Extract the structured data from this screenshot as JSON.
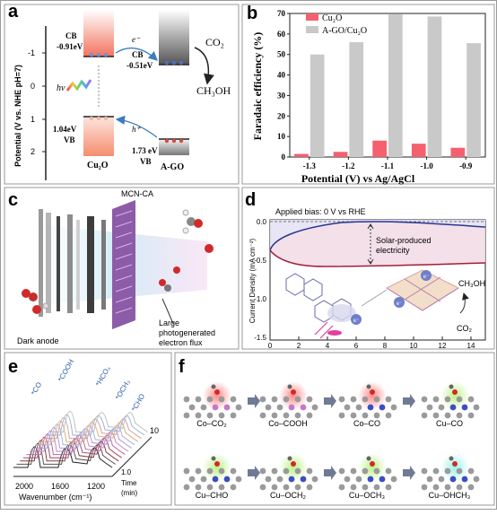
{
  "panel_a": {
    "label": "a",
    "yaxis_title": "Potential  (V vs. NHE pH=7)",
    "ticks": [
      "-1",
      "0",
      "1",
      "2"
    ],
    "cu2o": {
      "cb": "CB",
      "cb_val": "-0.91eV",
      "vb_val": "1.04eV",
      "vb": "VB",
      "name": "Cu₂O"
    },
    "ago": {
      "cb": "CB",
      "cb_val": "-0.51eV",
      "vb_val": "1.73 eV",
      "vb": "VB",
      "name": "A-GO"
    },
    "hv": "hv",
    "e_label": "e⁻",
    "h_label": "h⁺",
    "co2": "CO₂",
    "ch3oh": "CH₃OH",
    "colors": {
      "cu2o": "#f3735e",
      "ago": "#666666"
    }
  },
  "panel_b": {
    "label": "b",
    "chart_data": {
      "type": "bar",
      "categories": [
        "-1.3",
        "-1.2",
        "-1.1",
        "-1.0",
        "-0.9"
      ],
      "series": [
        {
          "name": "Cu₂O",
          "values": [
            1.5,
            2.5,
            8,
            6.5,
            4.5
          ],
          "color": "#f4606e"
        },
        {
          "name": "A-GO/Cu₂O",
          "values": [
            50,
            56,
            69.5,
            68.5,
            55.5
          ],
          "color": "#c9c9c9"
        }
      ],
      "xlabel": "Potential (V) vs Ag/AgCl",
      "ylabel": "Faradaic efficiency (%)",
      "ylim": [
        0,
        70
      ],
      "yticks": [
        "0",
        "10",
        "20",
        "30",
        "40",
        "50",
        "60",
        "70"
      ],
      "legend": "top-left"
    }
  },
  "panel_c": {
    "label": "c",
    "mcn_label": "MCN-CA",
    "dark_anode": "Dark anode",
    "flux_line1": "Large",
    "flux_line2": "photogenerated",
    "flux_line3": "electron flux"
  },
  "panel_d": {
    "label": "d",
    "bias": "Applied bias: 0 V vs RHE",
    "annotation_line1": "Solar-produced",
    "annotation_line2": "electricity",
    "ylabel": "Current Density (mA cm⁻²)",
    "yticks": [
      "0.0",
      "-0.5",
      "-1.0",
      "-1.5"
    ],
    "xticks": [
      "0",
      "2",
      "4",
      "6",
      "8",
      "10",
      "12",
      "14"
    ],
    "ch3oh": "CH₃OH",
    "co2": "CO₂",
    "electron": "e⁻"
  },
  "panel_e": {
    "label": "e",
    "peaks": [
      "*CO",
      "*COOH",
      "*HCO₃",
      "*OCH₃",
      "*CHO"
    ],
    "xticks": [
      "2000",
      "1600",
      "1200"
    ],
    "xlabel": "Wavenumber (cm⁻¹)",
    "time_ticks": [
      "10",
      "1.0"
    ],
    "time_label": "Time",
    "time_unit": "(min)"
  },
  "panel_f": {
    "label": "f",
    "row1": [
      "Co–CO₂",
      "Co–COOH",
      "Co–CO",
      "Cu–CO"
    ],
    "row2": [
      "Cu–CHO",
      "Cu–OCH₂",
      "Cu–OCH₃",
      "Cu–OHCH₃"
    ]
  }
}
